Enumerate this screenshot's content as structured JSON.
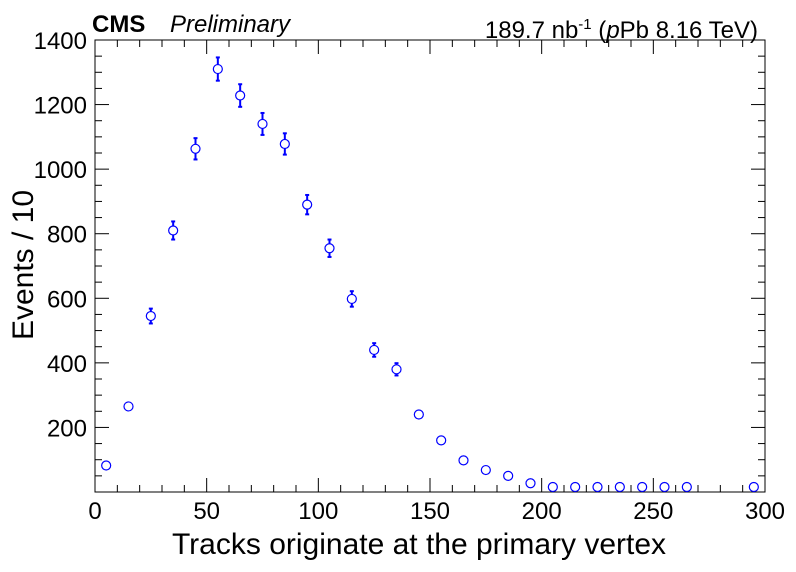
{
  "header": {
    "experiment": "CMS",
    "status": "Preliminary",
    "lumi_value": "189.7 nb",
    "lumi_exp": "-1",
    "lumi_system_pre": " (",
    "lumi_system_italic": "p",
    "lumi_system_rest": "Pb 8.16 TeV)"
  },
  "chart_data": {
    "type": "scatter",
    "title": "",
    "xlabel": "Tracks originate at the primary vertex",
    "ylabel": "Events / 10",
    "xlim": [
      0,
      300
    ],
    "ylim": [
      0,
      1400
    ],
    "x_ticks": [
      0,
      50,
      100,
      150,
      200,
      250,
      300
    ],
    "y_ticks": [
      200,
      400,
      600,
      800,
      1000,
      1200,
      1400
    ],
    "grid": false,
    "marker": "open-circle",
    "color": "#0000ff",
    "points": [
      {
        "x": 5,
        "y": 82,
        "err": 9
      },
      {
        "x": 15,
        "y": 265,
        "err": 16
      },
      {
        "x": 25,
        "y": 545,
        "err": 23
      },
      {
        "x": 35,
        "y": 810,
        "err": 28
      },
      {
        "x": 45,
        "y": 1063,
        "err": 33
      },
      {
        "x": 55,
        "y": 1310,
        "err": 36
      },
      {
        "x": 65,
        "y": 1228,
        "err": 35
      },
      {
        "x": 75,
        "y": 1140,
        "err": 34
      },
      {
        "x": 85,
        "y": 1078,
        "err": 33
      },
      {
        "x": 95,
        "y": 890,
        "err": 30
      },
      {
        "x": 105,
        "y": 755,
        "err": 27
      },
      {
        "x": 115,
        "y": 598,
        "err": 24
      },
      {
        "x": 125,
        "y": 440,
        "err": 21
      },
      {
        "x": 135,
        "y": 380,
        "err": 19
      },
      {
        "x": 145,
        "y": 240,
        "err": 15
      },
      {
        "x": 155,
        "y": 160,
        "err": 13
      },
      {
        "x": 165,
        "y": 98,
        "err": 10
      },
      {
        "x": 175,
        "y": 68,
        "err": 8
      },
      {
        "x": 185,
        "y": 50,
        "err": 7
      },
      {
        "x": 195,
        "y": 27,
        "err": 5
      },
      {
        "x": 205,
        "y": 12,
        "err": 3
      },
      {
        "x": 215,
        "y": 5,
        "err": 2
      },
      {
        "x": 225,
        "y": 6,
        "err": 2
      },
      {
        "x": 235,
        "y": 2,
        "err": 1
      },
      {
        "x": 245,
        "y": 2,
        "err": 1
      },
      {
        "x": 255,
        "y": 1,
        "err": 1
      },
      {
        "x": 265,
        "y": 2,
        "err": 1
      },
      {
        "x": 295,
        "y": 1,
        "err": 1
      }
    ]
  }
}
